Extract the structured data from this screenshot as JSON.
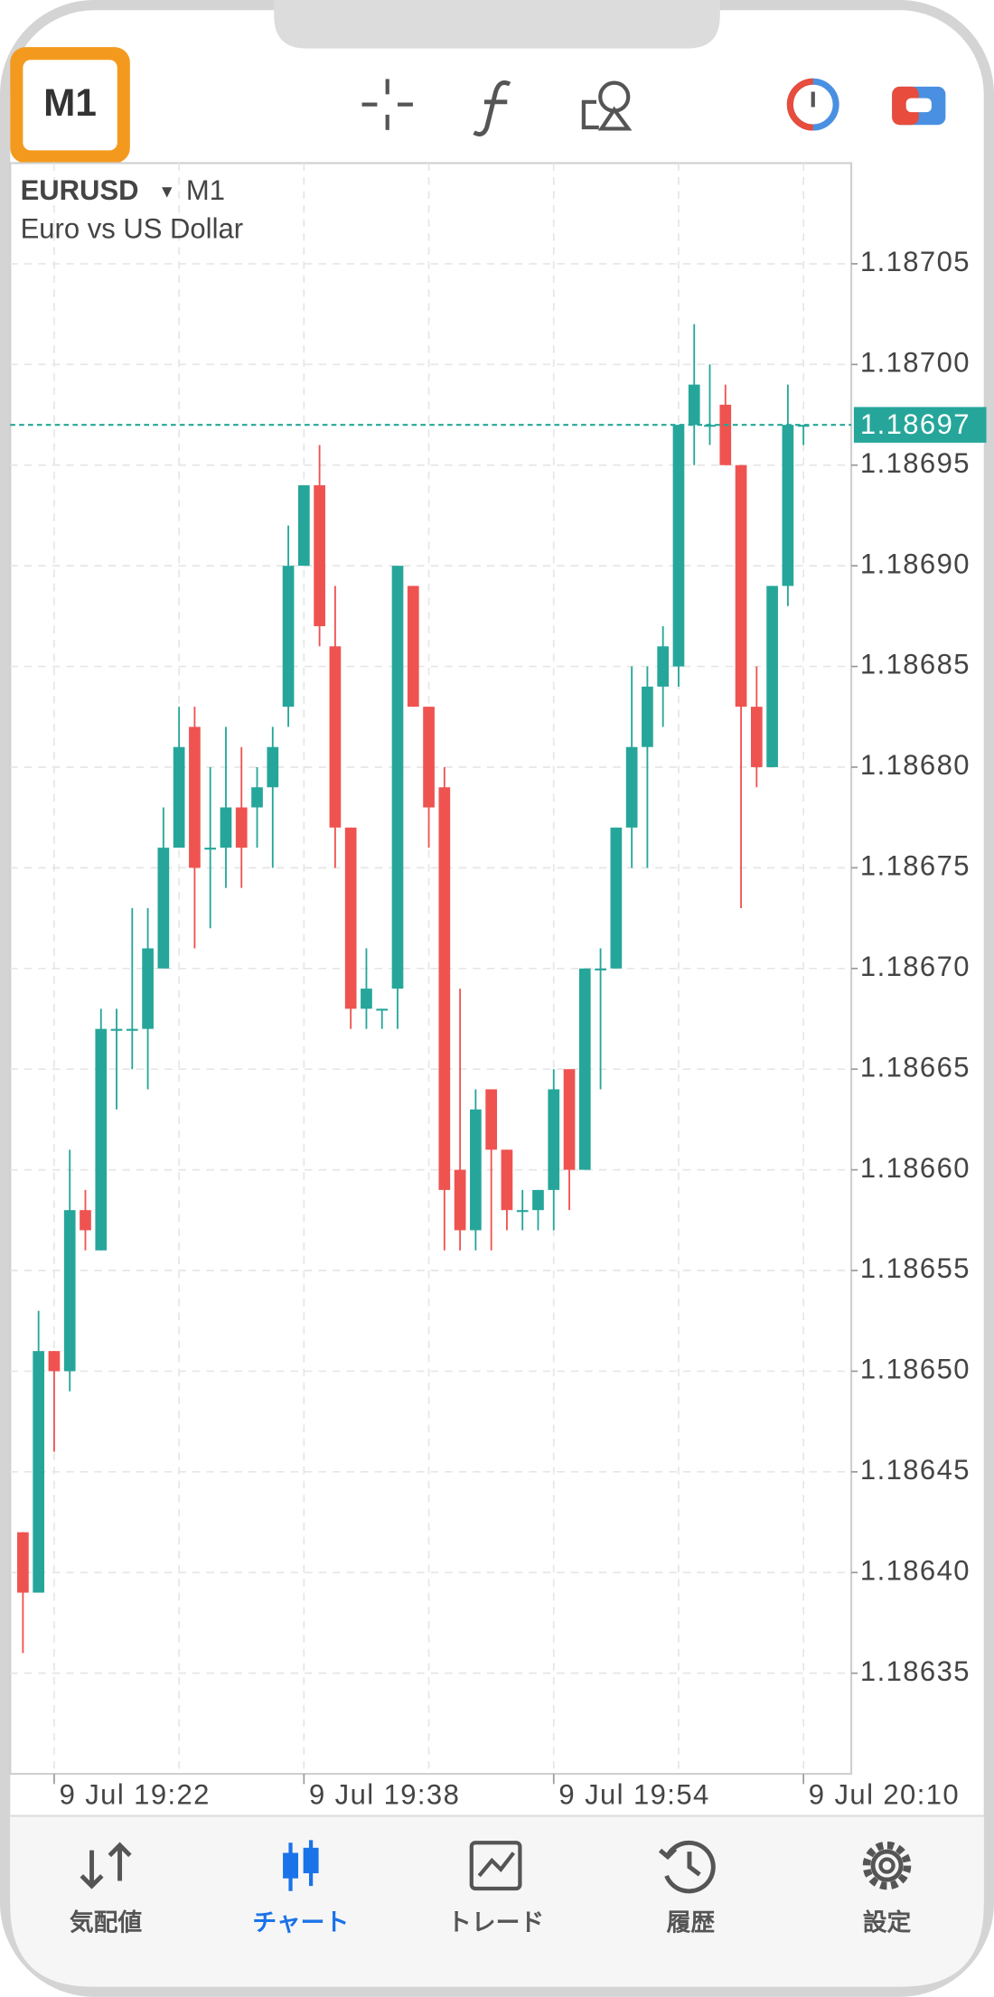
{
  "toolbar": {
    "timeframe_button": "M1"
  },
  "chart_data": {
    "type": "candlestick",
    "symbol": "EURUSD",
    "timeframe": "M1",
    "description": "Euro vs US Dollar",
    "categories": [
      null,
      null,
      "9 Jul 19:22",
      null,
      null,
      null,
      null,
      null,
      null,
      null,
      null,
      null,
      null,
      null,
      null,
      null,
      null,
      null,
      "9 Jul 19:38",
      null,
      null,
      null,
      null,
      null,
      null,
      null,
      null,
      null,
      null,
      null,
      null,
      null,
      null,
      null,
      "9 Jul 19:54",
      null,
      null,
      null,
      null,
      null,
      null,
      null,
      null,
      null,
      null,
      null,
      null,
      null,
      null,
      null,
      "9 Jul 20:10"
    ],
    "open": [
      1.18642,
      1.18639,
      1.18651,
      1.1865,
      1.18658,
      1.18656,
      1.18667,
      1.18667,
      1.18667,
      1.1867,
      1.18676,
      1.18682,
      1.18676,
      1.18676,
      1.18678,
      1.18678,
      1.18679,
      1.18683,
      1.1869,
      1.18694,
      1.18686,
      1.18677,
      1.18668,
      1.18668,
      1.18669,
      1.18689,
      1.18683,
      1.18679,
      1.1866,
      1.18657,
      1.18664,
      1.18661,
      1.18658,
      1.18658,
      1.18659,
      1.18665,
      1.1866,
      1.1867,
      1.1867,
      1.18677,
      1.18681,
      1.18684,
      1.18685,
      1.18697,
      1.18697,
      1.18698,
      1.18695,
      1.18683,
      1.1868,
      1.18689,
      1.18697
    ],
    "high": [
      1.18642,
      1.18653,
      1.18651,
      1.18661,
      1.18659,
      1.18668,
      1.18668,
      1.18673,
      1.18673,
      1.18678,
      1.18683,
      1.18683,
      1.1868,
      1.18682,
      1.18681,
      1.1868,
      1.18682,
      1.18692,
      1.18694,
      1.18696,
      1.18689,
      1.18677,
      1.18671,
      1.18668,
      1.1869,
      1.18689,
      1.18683,
      1.1868,
      1.18669,
      1.18664,
      1.18664,
      1.18661,
      1.18659,
      1.18659,
      1.18665,
      1.18665,
      1.1867,
      1.18671,
      1.18677,
      1.18685,
      1.18685,
      1.18687,
      1.18697,
      1.18702,
      1.187,
      1.18699,
      1.18695,
      1.18685,
      1.18689,
      1.18699,
      1.18697
    ],
    "low": [
      1.18636,
      1.18639,
      1.18646,
      1.18649,
      1.18656,
      1.18656,
      1.18663,
      1.18665,
      1.18664,
      1.1867,
      1.18676,
      1.18671,
      1.18672,
      1.18674,
      1.18674,
      1.18676,
      1.18675,
      1.18682,
      1.1869,
      1.18686,
      1.18675,
      1.18667,
      1.18667,
      1.18667,
      1.18667,
      1.18683,
      1.18676,
      1.18656,
      1.18656,
      1.18656,
      1.18656,
      1.18657,
      1.18657,
      1.18657,
      1.18657,
      1.18658,
      1.1866,
      1.18664,
      1.1867,
      1.18675,
      1.18675,
      1.18682,
      1.18684,
      1.18695,
      1.18696,
      1.18695,
      1.18673,
      1.18679,
      1.1868,
      1.18688,
      1.18696
    ],
    "close": [
      1.18639,
      1.18651,
      1.1865,
      1.18658,
      1.18657,
      1.18667,
      1.18667,
      1.18667,
      1.18671,
      1.18676,
      1.18681,
      1.18675,
      1.18676,
      1.18678,
      1.18676,
      1.18679,
      1.18681,
      1.1869,
      1.18694,
      1.18687,
      1.18677,
      1.18668,
      1.18669,
      1.18668,
      1.1869,
      1.18683,
      1.18678,
      1.18659,
      1.18657,
      1.18663,
      1.18661,
      1.18658,
      1.18658,
      1.18659,
      1.18664,
      1.1866,
      1.1867,
      1.1867,
      1.18677,
      1.18681,
      1.18684,
      1.18686,
      1.18697,
      1.18699,
      1.18697,
      1.18695,
      1.18683,
      1.1868,
      1.18689,
      1.18697,
      1.18697
    ],
    "up_color": "#26a69a",
    "down_color": "#ef5350",
    "current_price": 1.18697,
    "ylim": [
      1.1863,
      1.1871
    ],
    "yticks": [
      1.18635,
      {
        "value": 1.1864,
        "label": "1.18640"
      },
      1.18645,
      {
        "value": 1.1865,
        "label": "1.18650"
      },
      1.18655,
      {
        "value": 1.1866,
        "label": "1.18660"
      },
      1.18665,
      {
        "value": 1.1867,
        "label": "1.18670"
      },
      1.18675,
      {
        "value": 1.1868,
        "label": "1.18680"
      },
      1.18685,
      {
        "value": 1.1869,
        "label": "1.18690"
      },
      1.18695,
      {
        "value": 1.187,
        "label": "1.18700"
      },
      1.18705
    ],
    "grid": true
  },
  "tabs": [
    "気配値",
    "チャート",
    "トレード",
    "履歴",
    "設定"
  ]
}
